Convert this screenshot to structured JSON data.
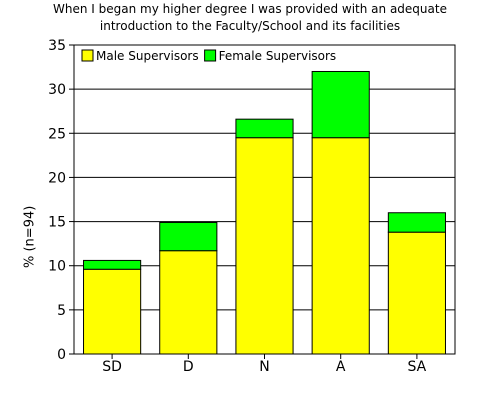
{
  "chart_data": {
    "type": "bar",
    "stacked": true,
    "title_lines": [
      "When I began my higher degree I was provided with an adequate",
      "introduction to the Faculty/School and its facilities"
    ],
    "ylabel": "% (n=94)",
    "xlabel": "",
    "categories": [
      "SD",
      "D",
      "N",
      "A",
      "SA"
    ],
    "series": [
      {
        "name": "Male Supervisors",
        "color": "#ffff00",
        "values": [
          9.6,
          11.7,
          24.5,
          24.5,
          13.8
        ]
      },
      {
        "name": "Female Supervisors",
        "color": "#00ff00",
        "values": [
          1.0,
          3.2,
          2.1,
          7.5,
          2.2
        ]
      }
    ],
    "ylim": [
      0,
      35
    ],
    "yticks": [
      0,
      5,
      10,
      15,
      20,
      25,
      30,
      35
    ],
    "grid": "horizontal",
    "legend_position": "top-left"
  }
}
